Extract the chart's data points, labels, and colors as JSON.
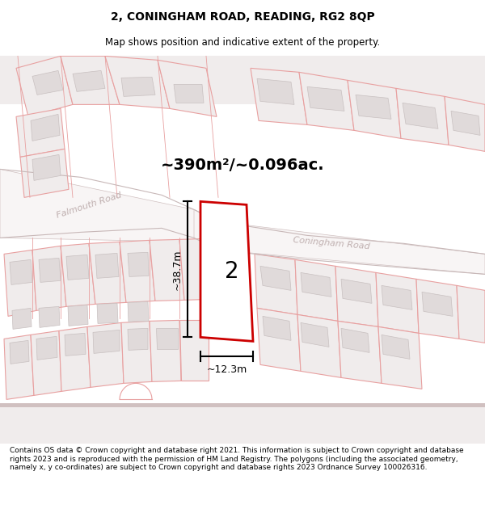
{
  "title": "2, CONINGHAM ROAD, READING, RG2 8QP",
  "subtitle": "Map shows position and indicative extent of the property.",
  "footer": "Contains OS data © Crown copyright and database right 2021. This information is subject to Crown copyright and database rights 2023 and is reproduced with the permission of HM Land Registry. The polygons (including the associated geometry, namely x, y co-ordinates) are subject to Crown copyright and database rights 2023 Ordnance Survey 100026316.",
  "area_label": "~390m²/~0.096ac.",
  "height_label": "~38.7m",
  "width_label": "~12.3m",
  "property_number": "2",
  "map_bg": "#f5f2f2",
  "road_band_color": "#ffffff",
  "road_edge_color": "#c8b8b8",
  "plot_outline_color": "#e8a0a0",
  "plot_fill_color": "#f0ecec",
  "building_fill_color": "#e0dada",
  "building_edge_color": "#c8c0c0",
  "road_label_color": "#c0b0b0",
  "highlight_color": "#cc0000",
  "highlight_fill": "#ffffff",
  "dim_line_color": "#000000",
  "title_fontsize": 10,
  "subtitle_fontsize": 8.5,
  "footer_fontsize": 6.5
}
